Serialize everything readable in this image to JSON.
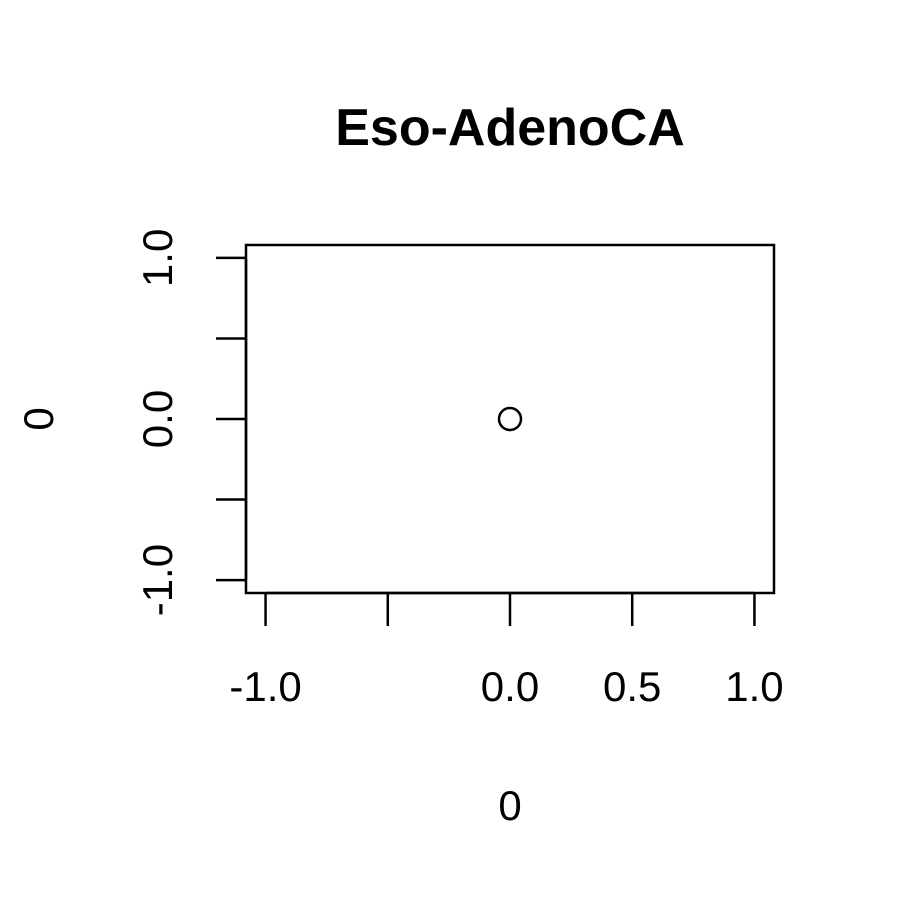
{
  "chart_data": {
    "type": "scatter",
    "title": "Eso-AdenoCA",
    "xlabel": "0",
    "ylabel": "0",
    "xlim": [
      -1.08,
      1.08
    ],
    "ylim": [
      -1.08,
      1.08
    ],
    "x_ticks": [
      -1.0,
      -0.5,
      0.0,
      0.5,
      1.0
    ],
    "x_tick_labels": [
      "-1.0",
      "",
      "0.0",
      "0.5",
      "1.0"
    ],
    "y_ticks": [
      -1.0,
      -0.5,
      0.0,
      0.5,
      1.0
    ],
    "y_tick_labels": [
      "-1.0",
      "",
      "0.0",
      "",
      "1.0"
    ],
    "grid": false,
    "marker": "open-circle",
    "series": [
      {
        "x": [
          0
        ],
        "y": [
          0
        ]
      }
    ],
    "colors": {
      "axis": "#000000",
      "marker": "#000000",
      "background": "#ffffff"
    }
  }
}
